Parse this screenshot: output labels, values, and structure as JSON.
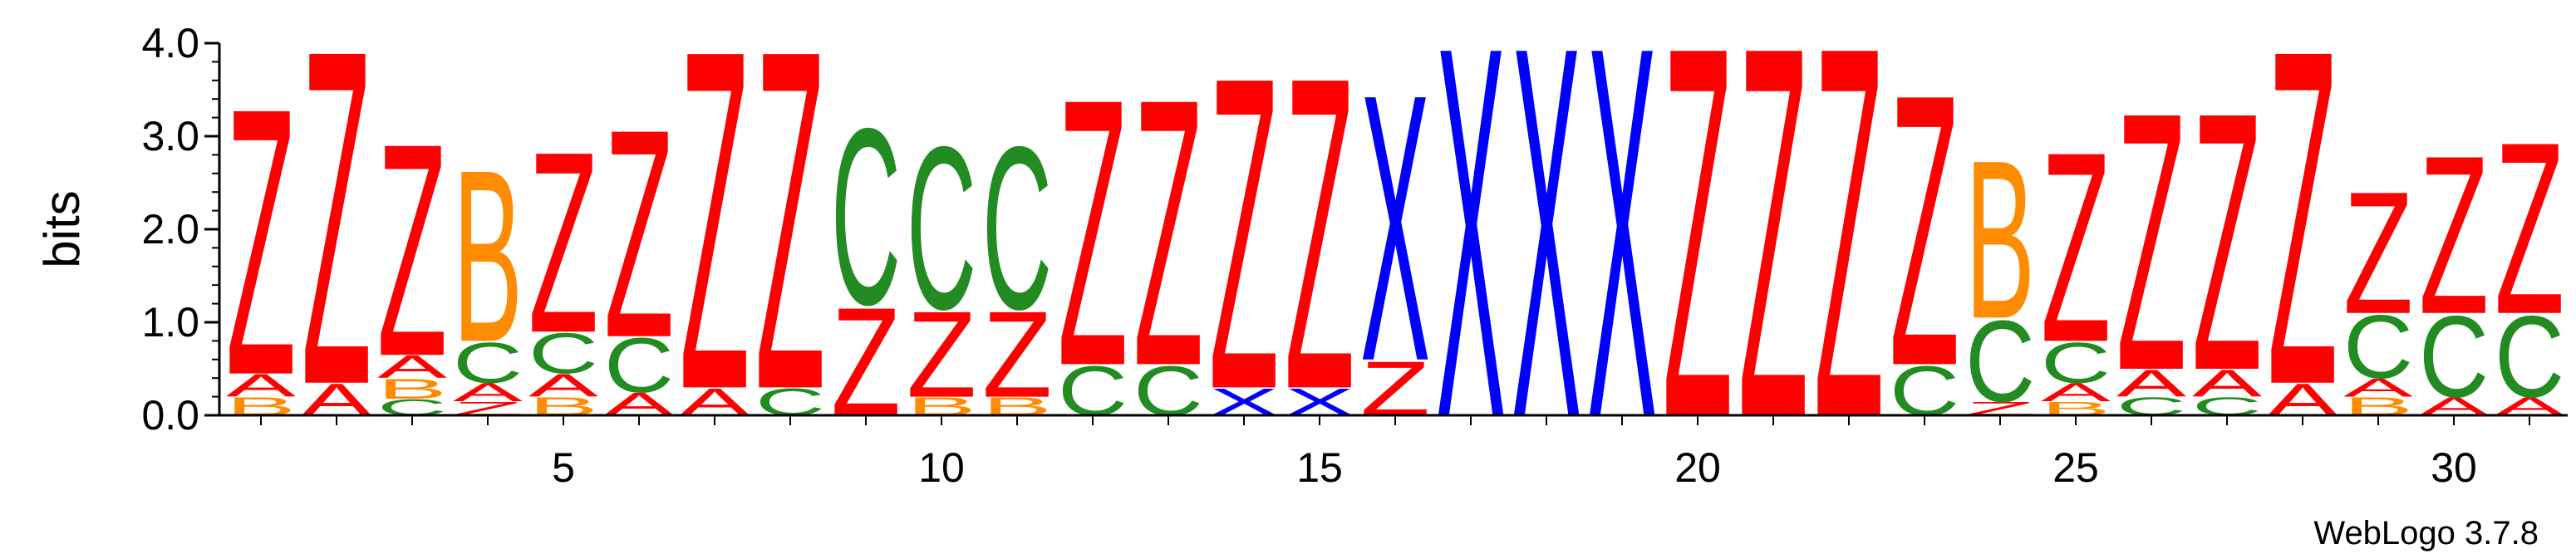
{
  "colors": {
    "Z": "#ff0000",
    "X": "#0000ff",
    "C": "#228b22",
    "B": "#ff8c00",
    "A": "#ff0000"
  },
  "footer": "WebLogo 3.7.8",
  "chart_data": {
    "type": "sequence-logo",
    "ylabel": "bits",
    "ylim": [
      0,
      4.0
    ],
    "yticks": [
      "0.0",
      "1.0",
      "2.0",
      "3.0",
      "4.0"
    ],
    "xticks": [
      5,
      10,
      15,
      20,
      25,
      30
    ],
    "positions": [
      {
        "pos": 1,
        "stack": [
          {
            "l": "B",
            "h": 0.2
          },
          {
            "l": "A",
            "h": 0.25
          },
          {
            "l": "Z",
            "h": 2.95
          }
        ]
      },
      {
        "pos": 2,
        "stack": [
          {
            "l": "A",
            "h": 0.35
          },
          {
            "l": "Z",
            "h": 3.7
          }
        ]
      },
      {
        "pos": 3,
        "stack": [
          {
            "l": "C",
            "h": 0.18
          },
          {
            "l": "B",
            "h": 0.22
          },
          {
            "l": "A",
            "h": 0.25
          },
          {
            "l": "Z",
            "h": 2.35
          }
        ]
      },
      {
        "pos": 4,
        "stack": [
          {
            "l": "Z",
            "h": 0.15
          },
          {
            "l": "A",
            "h": 0.2
          },
          {
            "l": "C",
            "h": 0.45
          },
          {
            "l": "B",
            "h": 1.9
          }
        ]
      },
      {
        "pos": 5,
        "stack": [
          {
            "l": "B",
            "h": 0.2
          },
          {
            "l": "A",
            "h": 0.25
          },
          {
            "l": "C",
            "h": 0.45
          },
          {
            "l": "Z",
            "h": 2.0
          }
        ]
      },
      {
        "pos": 6,
        "stack": [
          {
            "l": "A",
            "h": 0.25
          },
          {
            "l": "C",
            "h": 0.6
          },
          {
            "l": "Z",
            "h": 2.3
          }
        ]
      },
      {
        "pos": 7,
        "stack": [
          {
            "l": "A",
            "h": 0.3
          },
          {
            "l": "Z",
            "h": 3.75
          }
        ]
      },
      {
        "pos": 8,
        "stack": [
          {
            "l": "C",
            "h": 0.3
          },
          {
            "l": "Z",
            "h": 3.75
          }
        ]
      },
      {
        "pos": 9,
        "stack": [
          {
            "l": "Z",
            "h": 1.2
          },
          {
            "l": "C",
            "h": 1.95
          }
        ]
      },
      {
        "pos": 10,
        "stack": [
          {
            "l": "B",
            "h": 0.2
          },
          {
            "l": "Z",
            "h": 0.95
          },
          {
            "l": "C",
            "h": 1.8
          }
        ]
      },
      {
        "pos": 11,
        "stack": [
          {
            "l": "B",
            "h": 0.2
          },
          {
            "l": "Z",
            "h": 0.95
          },
          {
            "l": "C",
            "h": 1.8
          }
        ]
      },
      {
        "pos": 12,
        "stack": [
          {
            "l": "C",
            "h": 0.55
          },
          {
            "l": "Z",
            "h": 2.95
          }
        ]
      },
      {
        "pos": 13,
        "stack": [
          {
            "l": "C",
            "h": 0.55
          },
          {
            "l": "Z",
            "h": 2.95
          }
        ]
      },
      {
        "pos": 14,
        "stack": [
          {
            "l": "X",
            "h": 0.3
          },
          {
            "l": "Z",
            "h": 3.45
          }
        ]
      },
      {
        "pos": 15,
        "stack": [
          {
            "l": "X",
            "h": 0.3
          },
          {
            "l": "Z",
            "h": 3.45
          }
        ]
      },
      {
        "pos": 16,
        "stack": [
          {
            "l": "Z",
            "h": 0.6
          },
          {
            "l": "X",
            "h": 2.95
          }
        ]
      },
      {
        "pos": 17,
        "stack": [
          {
            "l": "X",
            "h": 4.1
          }
        ]
      },
      {
        "pos": 18,
        "stack": [
          {
            "l": "X",
            "h": 4.1
          }
        ]
      },
      {
        "pos": 19,
        "stack": [
          {
            "l": "X",
            "h": 4.1
          }
        ]
      },
      {
        "pos": 20,
        "stack": [
          {
            "l": "Z",
            "h": 4.1
          }
        ]
      },
      {
        "pos": 21,
        "stack": [
          {
            "l": "Z",
            "h": 4.1
          }
        ]
      },
      {
        "pos": 22,
        "stack": [
          {
            "l": "Z",
            "h": 4.1
          }
        ]
      },
      {
        "pos": 23,
        "stack": [
          {
            "l": "C",
            "h": 0.55
          },
          {
            "l": "Z",
            "h": 3.0
          }
        ]
      },
      {
        "pos": 24,
        "stack": [
          {
            "l": "Z",
            "h": 0.15
          },
          {
            "l": "C",
            "h": 0.9
          },
          {
            "l": "B",
            "h": 1.75
          }
        ]
      },
      {
        "pos": 25,
        "stack": [
          {
            "l": "B",
            "h": 0.15
          },
          {
            "l": "A",
            "h": 0.2
          },
          {
            "l": "C",
            "h": 0.45
          },
          {
            "l": "Z",
            "h": 2.1
          }
        ]
      },
      {
        "pos": 26,
        "stack": [
          {
            "l": "C",
            "h": 0.2
          },
          {
            "l": "A",
            "h": 0.3
          },
          {
            "l": "Z",
            "h": 2.85
          }
        ]
      },
      {
        "pos": 27,
        "stack": [
          {
            "l": "C",
            "h": 0.2
          },
          {
            "l": "A",
            "h": 0.3
          },
          {
            "l": "Z",
            "h": 2.85
          }
        ]
      },
      {
        "pos": 28,
        "stack": [
          {
            "l": "A",
            "h": 0.35
          },
          {
            "l": "Z",
            "h": 3.7
          }
        ]
      },
      {
        "pos": 29,
        "stack": [
          {
            "l": "B",
            "h": 0.2
          },
          {
            "l": "A",
            "h": 0.2
          },
          {
            "l": "C",
            "h": 0.7
          },
          {
            "l": "Z",
            "h": 1.35
          }
        ]
      },
      {
        "pos": 30,
        "stack": [
          {
            "l": "A",
            "h": 0.2
          },
          {
            "l": "C",
            "h": 0.9
          },
          {
            "l": "Z",
            "h": 1.75
          }
        ]
      },
      {
        "pos": 31,
        "stack": [
          {
            "l": "A",
            "h": 0.2
          },
          {
            "l": "C",
            "h": 0.9
          },
          {
            "l": "Z",
            "h": 1.9
          }
        ]
      }
    ]
  }
}
